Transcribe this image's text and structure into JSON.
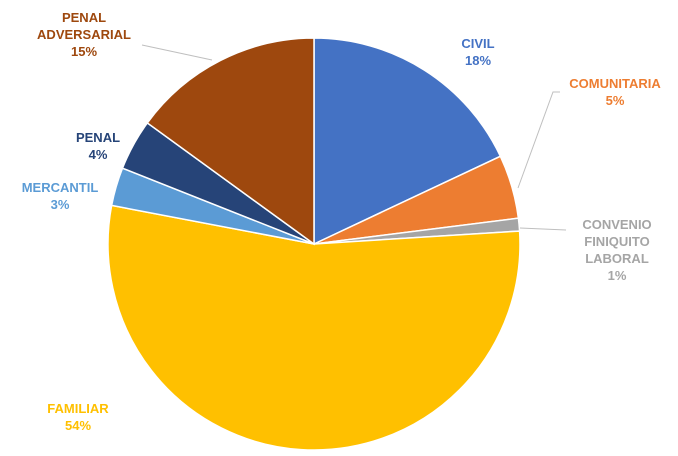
{
  "chart_data": {
    "type": "pie",
    "start_angle_deg": 0,
    "direction": "clockwise",
    "legend": "none",
    "slices": [
      {
        "key": "civil",
        "label": "CIVIL",
        "value": 18,
        "value_label": "18%",
        "color": "#4472C4",
        "label_color": "#4472C4"
      },
      {
        "key": "comunitaria",
        "label": "COMUNITARIA",
        "value": 5,
        "value_label": "5%",
        "color": "#ED7D31",
        "label_color": "#ED7D31"
      },
      {
        "key": "convenio",
        "label_lines": [
          "CONVENIO",
          "FINIQUITO",
          "LABORAL"
        ],
        "value": 1,
        "value_label": "1%",
        "color": "#A5A5A5",
        "label_color": "#A5A5A5"
      },
      {
        "key": "familiar",
        "label": "FAMILIAR",
        "value": 54,
        "value_label": "54%",
        "color": "#FFC000",
        "label_color": "#FFC000"
      },
      {
        "key": "mercantil",
        "label": "MERCANTIL",
        "value": 3,
        "value_label": "3%",
        "color": "#5B9BD5",
        "label_color": "#5B9BD5"
      },
      {
        "key": "penal",
        "label": "PENAL",
        "value": 4,
        "value_label": "4%",
        "color": "#264478",
        "label_color": "#264478"
      },
      {
        "key": "penal-adversarial",
        "label_lines": [
          "PENAL",
          "ADVERSARIAL"
        ],
        "value": 15,
        "value_label": "15%",
        "color": "#9E480E",
        "label_color": "#9E480E"
      }
    ]
  }
}
